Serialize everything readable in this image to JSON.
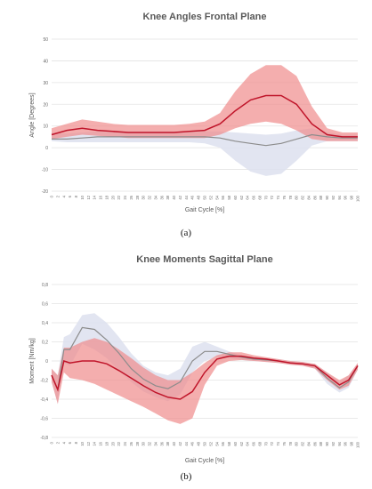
{
  "chart_data": [
    {
      "type": "area",
      "panel_label": "(a)",
      "title": "Knee Angles Frontal Plane",
      "xlabel": "Gait Cycle [%]",
      "ylabel": "Angle [Degrees]",
      "xlim": [
        0,
        100
      ],
      "ylim": [
        -20,
        50
      ],
      "yticks": [
        "50",
        "40",
        "30",
        "20",
        "10",
        "0",
        "-10",
        "-20"
      ],
      "xticks": [
        "0",
        "2",
        "4",
        "6",
        "8",
        "10",
        "12",
        "14",
        "16",
        "18",
        "20",
        "22",
        "24",
        "26",
        "28",
        "30",
        "32",
        "34",
        "36",
        "38",
        "40",
        "42",
        "44",
        "46",
        "48",
        "50",
        "52",
        "54",
        "56",
        "58",
        "60",
        "62",
        "64",
        "66",
        "68",
        "70",
        "72",
        "74",
        "76",
        "78",
        "80",
        "82",
        "84",
        "86",
        "88",
        "90",
        "92",
        "94",
        "96",
        "98",
        "100"
      ],
      "x": [
        0,
        5,
        10,
        15,
        20,
        25,
        30,
        35,
        40,
        45,
        50,
        55,
        60,
        65,
        70,
        75,
        80,
        85,
        90,
        95,
        100
      ],
      "series": [
        {
          "role": "patient",
          "color": "#c0152a",
          "band_color": "#f08c8c",
          "mean": [
            6,
            8,
            9,
            8,
            7.5,
            7,
            7,
            7,
            7,
            7.5,
            8,
            11,
            17,
            22,
            24,
            24,
            20,
            11,
            6,
            5,
            5
          ],
          "sd_upper": [
            9,
            11,
            13,
            12,
            11,
            10.5,
            10.5,
            10.5,
            10.5,
            11,
            12,
            16,
            26,
            34,
            38,
            38,
            33,
            19,
            9,
            7,
            7
          ],
          "sd_lower": [
            4,
            5,
            6,
            5.5,
            5,
            4.5,
            4.5,
            4.5,
            4.5,
            4.5,
            4.5,
            6,
            9,
            11,
            12,
            11,
            8,
            4,
            3,
            3,
            3
          ]
        },
        {
          "role": "control",
          "color": "#8c8c8c",
          "band_color": "#dde1ef",
          "mean": [
            4,
            4,
            4.5,
            5,
            5,
            5,
            5,
            5,
            5,
            5,
            5,
            4.5,
            3,
            2,
            1,
            2,
            4,
            6,
            5,
            4.5,
            4.5
          ],
          "sd_upper": [
            7,
            6.5,
            7,
            7.5,
            7.5,
            7.5,
            7.5,
            7.5,
            7.5,
            7.5,
            7.5,
            7.5,
            7,
            6.5,
            6,
            6.5,
            8,
            9,
            7,
            6,
            6
          ],
          "sd_lower": [
            3,
            2.5,
            2.5,
            2.5,
            2.5,
            2.5,
            2.5,
            2.5,
            2.5,
            2.5,
            2,
            0,
            -6,
            -11,
            -13,
            -12,
            -6,
            1,
            3,
            3,
            3
          ]
        }
      ]
    },
    {
      "type": "area",
      "panel_label": "(b)",
      "title": "Knee Moments Sagittal Plane",
      "xlabel": "Gait Cycle [%]",
      "ylabel": "Moment [Nm/kg]",
      "xlim": [
        0,
        100
      ],
      "ylim": [
        -0.8,
        0.8
      ],
      "yticks": [
        "0,8",
        "0,6",
        "0,4",
        "0,2",
        "0",
        "-0,2",
        "-0,4",
        "-0,6",
        "-0,8"
      ],
      "xticks": [
        "0",
        "2",
        "4",
        "6",
        "8",
        "10",
        "12",
        "14",
        "16",
        "18",
        "20",
        "22",
        "24",
        "26",
        "28",
        "30",
        "32",
        "34",
        "36",
        "38",
        "40",
        "42",
        "44",
        "46",
        "48",
        "50",
        "52",
        "54",
        "56",
        "58",
        "60",
        "62",
        "64",
        "66",
        "68",
        "70",
        "72",
        "74",
        "76",
        "78",
        "80",
        "82",
        "84",
        "86",
        "88",
        "90",
        "92",
        "94",
        "96",
        "98",
        "100"
      ],
      "x": [
        0,
        2,
        4,
        6,
        10,
        14,
        18,
        22,
        26,
        30,
        34,
        38,
        42,
        46,
        50,
        54,
        58,
        62,
        66,
        70,
        74,
        78,
        82,
        86,
        90,
        94,
        97,
        100
      ],
      "series": [
        {
          "role": "patient",
          "color": "#c0152a",
          "band_color": "#f08c8c",
          "mean": [
            -0.15,
            -0.3,
            0.0,
            -0.02,
            0.0,
            0.0,
            -0.03,
            -0.1,
            -0.18,
            -0.26,
            -0.33,
            -0.38,
            -0.4,
            -0.32,
            -0.12,
            0.02,
            0.05,
            0.05,
            0.03,
            0.02,
            0.0,
            -0.02,
            -0.03,
            -0.05,
            -0.15,
            -0.25,
            -0.2,
            -0.05
          ],
          "sd_upper": [
            -0.08,
            -0.15,
            0.14,
            0.14,
            0.2,
            0.24,
            0.2,
            0.12,
            0.03,
            -0.07,
            -0.15,
            -0.2,
            -0.2,
            -0.12,
            -0.02,
            0.06,
            0.09,
            0.09,
            0.06,
            0.04,
            0.02,
            0.0,
            -0.01,
            -0.03,
            -0.12,
            -0.2,
            -0.15,
            -0.02
          ],
          "sd_lower": [
            -0.22,
            -0.45,
            -0.12,
            -0.18,
            -0.2,
            -0.24,
            -0.3,
            -0.36,
            -0.42,
            -0.48,
            -0.55,
            -0.62,
            -0.66,
            -0.6,
            -0.25,
            -0.05,
            0.0,
            0.01,
            0.0,
            -0.01,
            -0.02,
            -0.04,
            -0.05,
            -0.08,
            -0.2,
            -0.3,
            -0.26,
            -0.09
          ]
        },
        {
          "role": "control",
          "color": "#8c8c8c",
          "band_color": "#dde1ef",
          "mean": [
            -0.15,
            -0.3,
            0.12,
            0.12,
            0.35,
            0.33,
            0.22,
            0.08,
            -0.08,
            -0.19,
            -0.26,
            -0.29,
            -0.22,
            0.0,
            0.1,
            0.1,
            0.07,
            0.04,
            0.02,
            0.01,
            0.0,
            -0.02,
            -0.03,
            -0.05,
            -0.18,
            -0.28,
            -0.22,
            -0.05
          ],
          "sd_upper": [
            -0.08,
            -0.15,
            0.25,
            0.28,
            0.48,
            0.5,
            0.4,
            0.25,
            0.08,
            -0.05,
            -0.12,
            -0.15,
            -0.08,
            0.15,
            0.2,
            0.15,
            0.1,
            0.06,
            0.04,
            0.03,
            0.02,
            0.0,
            -0.01,
            -0.03,
            -0.12,
            -0.22,
            -0.15,
            -0.02
          ],
          "sd_lower": [
            -0.22,
            -0.45,
            -0.02,
            -0.05,
            0.18,
            0.12,
            0.03,
            -0.1,
            -0.22,
            -0.32,
            -0.38,
            -0.42,
            -0.35,
            -0.12,
            0.0,
            0.04,
            0.03,
            0.01,
            0.0,
            -0.01,
            -0.02,
            -0.04,
            -0.05,
            -0.08,
            -0.24,
            -0.33,
            -0.28,
            -0.09
          ]
        }
      ]
    }
  ]
}
